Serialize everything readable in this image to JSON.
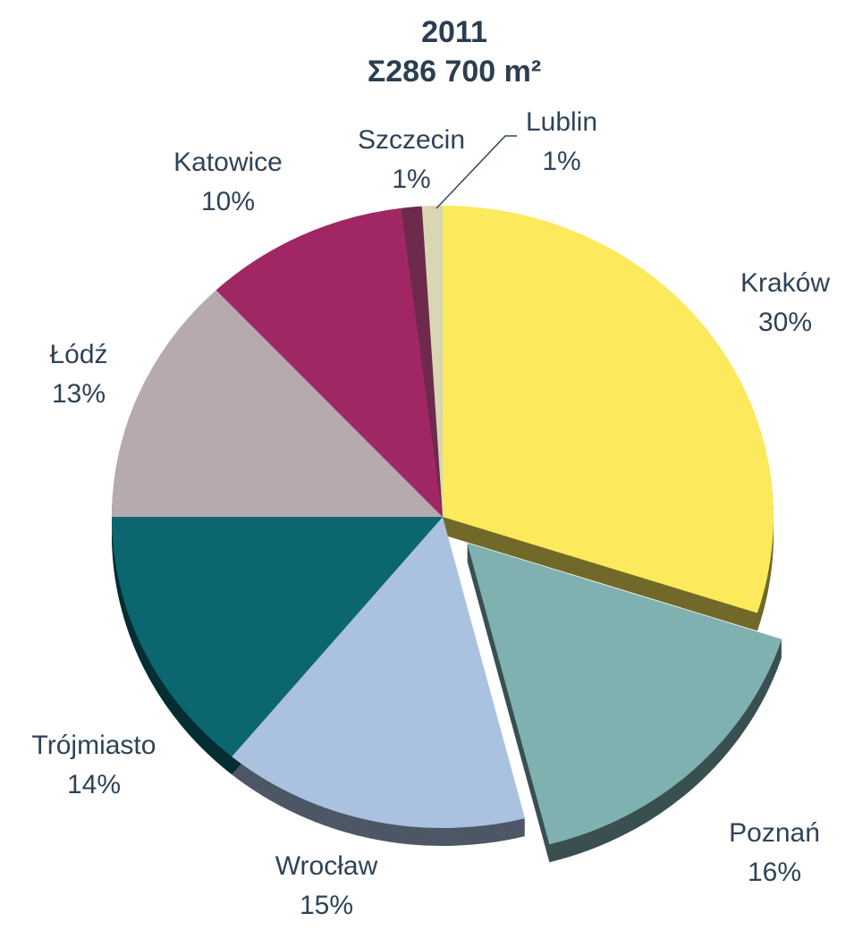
{
  "chart_data": {
    "type": "pie",
    "title": "2011",
    "subtitle": "Σ286 700 m²",
    "categories": [
      "Kraków",
      "Poznań",
      "Wrocław",
      "Trójmiasto",
      "Łódź",
      "Katowice",
      "Szczecin",
      "Lublin"
    ],
    "values": [
      30,
      16,
      15,
      14,
      13,
      10,
      1,
      1
    ],
    "value_labels": [
      "30%",
      "16%",
      "15%",
      "14%",
      "13%",
      "10%",
      "1%",
      "1%"
    ],
    "colors": [
      "#fce95c",
      "#80b1b1",
      "#aac2e0",
      "#0b6670",
      "#b6aab0",
      "#a02763",
      "#6e2a4d",
      "#d9d6b4"
    ],
    "exploded": "Poznań"
  }
}
